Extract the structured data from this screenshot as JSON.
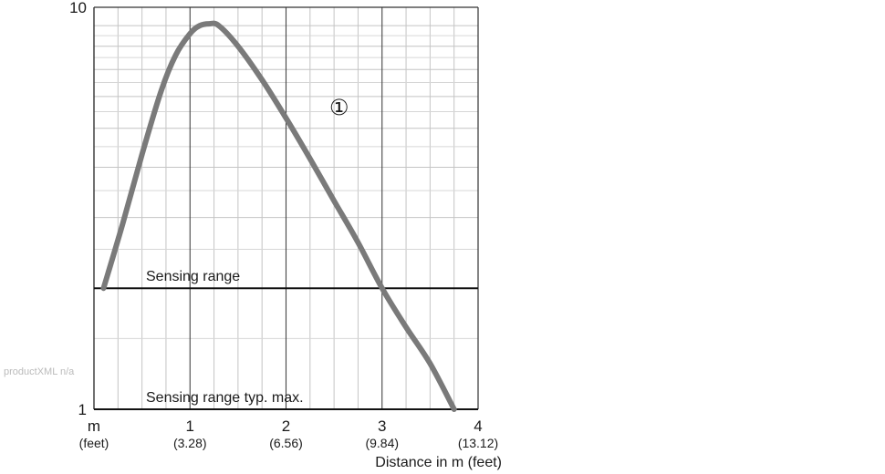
{
  "watermark": "productXML n/a",
  "chart_data": {
    "type": "line",
    "title": "",
    "xlabel": "Distance in m (feet)",
    "ylabel": "",
    "y_scale": "log",
    "xlim": [
      0,
      4
    ],
    "ylim": [
      1,
      10
    ],
    "x_ticks": [
      {
        "value": 0,
        "label": "m",
        "sublabel": "(feet)"
      },
      {
        "value": 1,
        "label": "1",
        "sublabel": "(3.28)"
      },
      {
        "value": 2,
        "label": "2",
        "sublabel": "(6.56)"
      },
      {
        "value": 3,
        "label": "3",
        "sublabel": "(9.84)"
      },
      {
        "value": 4,
        "label": "4",
        "sublabel": "(13.12)"
      }
    ],
    "y_ticks": [
      {
        "value": 1,
        "label": "1"
      },
      {
        "value": 10,
        "label": "10"
      }
    ],
    "grid": true,
    "series": [
      {
        "name": "①",
        "color": "#7a7a7a",
        "x": [
          0.1,
          0.3,
          0.5,
          0.7,
          0.85,
          1.0,
          1.1,
          1.2,
          1.3,
          1.5,
          1.75,
          2.0,
          2.25,
          2.5,
          2.75,
          3.0,
          3.25,
          3.5,
          3.75
        ],
        "y": [
          2.0,
          2.9,
          4.3,
          6.2,
          7.6,
          8.6,
          9.0,
          9.1,
          9.0,
          8.0,
          6.6,
          5.3,
          4.2,
          3.3,
          2.6,
          2.0,
          1.6,
          1.3,
          1.0
        ]
      }
    ],
    "reference_lines": [
      {
        "y": 2,
        "label": "Sensing range"
      },
      {
        "y": 1,
        "label": "Sensing range typ. max."
      }
    ]
  }
}
